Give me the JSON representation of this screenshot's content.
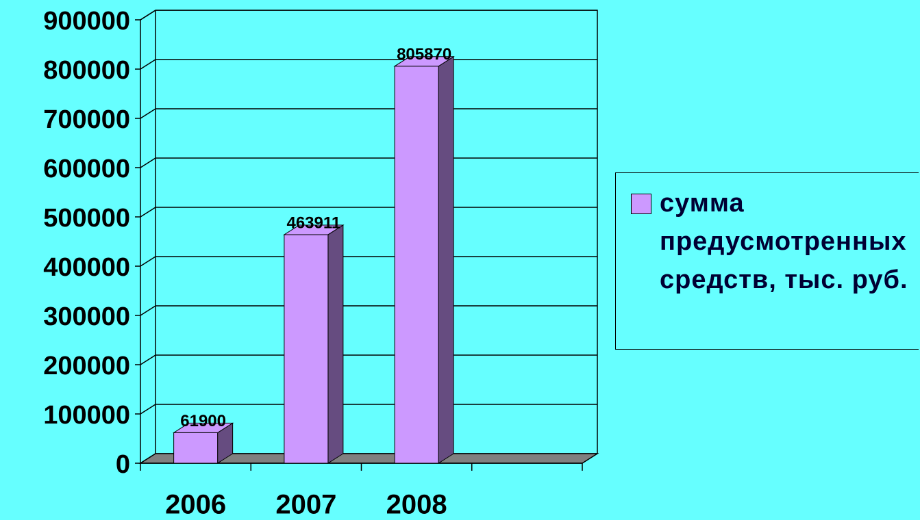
{
  "chart_data": {
    "type": "bar3d",
    "categories": [
      "2006",
      "2007",
      "2008",
      null
    ],
    "series": [
      {
        "name": "сумма предусмотренных средств, тыс. руб.",
        "color": "#cc99ff",
        "values": [
          61900,
          463911,
          805870,
          null
        ]
      }
    ],
    "ylim": [
      0,
      900000
    ],
    "yticks": [
      0,
      100000,
      200000,
      300000,
      400000,
      500000,
      600000,
      700000,
      800000,
      900000
    ],
    "grid": true,
    "legend": "right"
  }
}
